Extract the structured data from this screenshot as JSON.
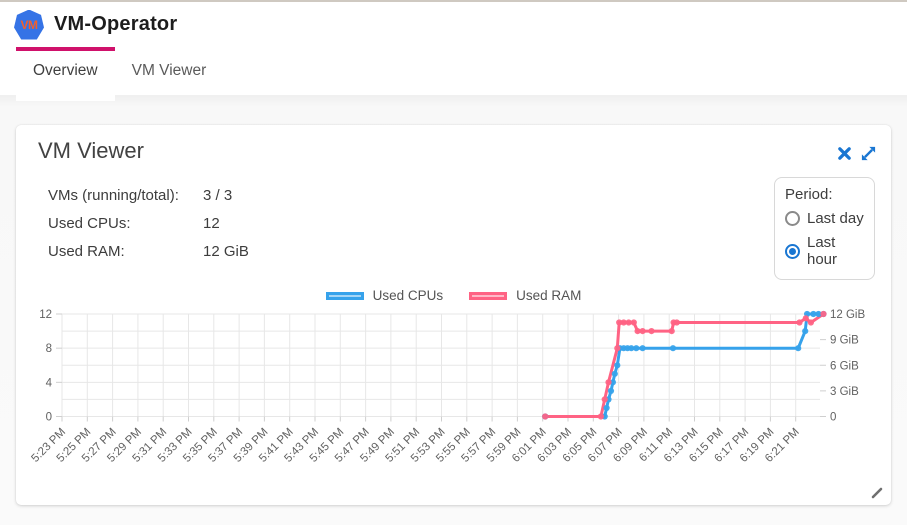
{
  "header": {
    "logo_text": "VM",
    "app_title": "VM-Operator"
  },
  "tabs": {
    "overview": "Overview",
    "vm_viewer": "VM Viewer"
  },
  "widget": {
    "title": "VM Viewer",
    "stats": [
      {
        "label": "VMs (running/total):",
        "value": "3 / 3"
      },
      {
        "label": "Used CPUs:",
        "value": "12"
      },
      {
        "label": "Used RAM:",
        "value": "12 GiB"
      }
    ],
    "period": {
      "label": "Period:",
      "options": [
        {
          "label": "Last day",
          "selected": false
        },
        {
          "label": "Last hour",
          "selected": true
        }
      ]
    }
  },
  "colors": {
    "accent": "#d0116b",
    "icon_blue": "#1976d2",
    "cpu_line": "#36A2EB",
    "ram_line": "#FF6384"
  },
  "chart_data": {
    "type": "line",
    "title": "",
    "legend_position": "top",
    "grid": true,
    "x_tick_labels": [
      "5:23 PM",
      "5:25 PM",
      "5:27 PM",
      "5:29 PM",
      "5:31 PM",
      "5:33 PM",
      "5:35 PM",
      "5:37 PM",
      "5:39 PM",
      "5:41 PM",
      "5:43 PM",
      "5:45 PM",
      "5:47 PM",
      "5:49 PM",
      "5:51 PM",
      "5:53 PM",
      "5:55 PM",
      "5:57 PM",
      "5:59 PM",
      "6:01 PM",
      "6:03 PM",
      "6:05 PM",
      "6:07 PM",
      "6:09 PM",
      "6:11 PM",
      "6:13 PM",
      "6:15 PM",
      "6:17 PM",
      "6:19 PM",
      "6:21 PM"
    ],
    "x_axis": {
      "start_label": "5:23 PM",
      "end_label": "6:21 PM",
      "tick_interval_minutes": 2,
      "x_unit": "minutes after 5:23 PM"
    },
    "left_axis": {
      "ticks": [
        0,
        4,
        8,
        12
      ],
      "range": [
        0,
        12
      ],
      "series": "Used CPUs"
    },
    "right_axis": {
      "ticks": [
        {
          "v": 0,
          "label": "0"
        },
        {
          "v": 3,
          "label": "3 GiB"
        },
        {
          "v": 6,
          "label": "6 GiB"
        },
        {
          "v": 9,
          "label": "9 GiB"
        },
        {
          "v": 12,
          "label": "12 GiB"
        }
      ],
      "range": [
        0,
        12
      ],
      "series": "Used RAM"
    },
    "series": [
      {
        "name": "Used CPUs",
        "axis": "left",
        "color": "#36A2EB",
        "fill": "rgba(54,162,235,0.45)",
        "points": [
          [
            38.2,
            0
          ],
          [
            42.9,
            0
          ],
          [
            43.05,
            1
          ],
          [
            43.2,
            2
          ],
          [
            43.4,
            3
          ],
          [
            43.55,
            4
          ],
          [
            43.7,
            5
          ],
          [
            43.9,
            6
          ],
          [
            44.1,
            8
          ],
          [
            44.4,
            8
          ],
          [
            44.7,
            8
          ],
          [
            45.0,
            8
          ],
          [
            45.4,
            8
          ],
          [
            45.9,
            8
          ],
          [
            48.3,
            8
          ],
          [
            58.2,
            8
          ],
          [
            58.75,
            10
          ],
          [
            58.9,
            12
          ],
          [
            59.4,
            12
          ],
          [
            59.8,
            12
          ],
          [
            60.2,
            12
          ]
        ]
      },
      {
        "name": "Used RAM",
        "axis": "right",
        "color": "#FF6384",
        "fill": "rgba(255,99,132,0.45)",
        "points": [
          [
            38.2,
            0
          ],
          [
            42.6,
            0
          ],
          [
            42.9,
            2
          ],
          [
            43.2,
            4
          ],
          [
            43.9,
            8
          ],
          [
            44.05,
            11
          ],
          [
            44.4,
            11
          ],
          [
            44.8,
            11
          ],
          [
            45.2,
            11
          ],
          [
            45.5,
            10
          ],
          [
            45.9,
            10
          ],
          [
            46.6,
            10
          ],
          [
            48.2,
            10
          ],
          [
            48.35,
            11
          ],
          [
            48.6,
            11
          ],
          [
            58.3,
            11
          ],
          [
            58.8,
            11.5
          ],
          [
            59.2,
            11
          ],
          [
            60.2,
            12
          ]
        ]
      }
    ]
  }
}
